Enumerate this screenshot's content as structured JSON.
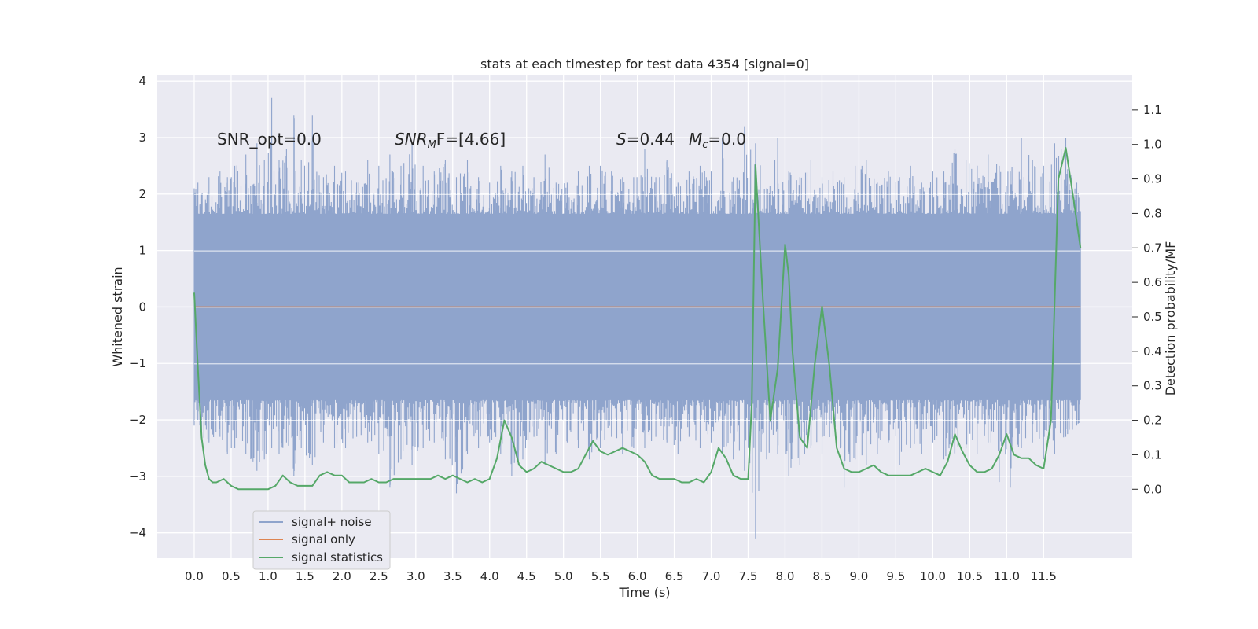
{
  "chart_data": {
    "type": "line",
    "title": "stats at each timestep for test data 4354 [signal=0]",
    "xlabel": "Time (s)",
    "ylabel": "Whitened strain",
    "ylabel_right": "Detection probability/MF",
    "xlim": [
      -0.5,
      12.7
    ],
    "ylim": [
      -4.45,
      4.1
    ],
    "ylim_right": [
      -0.2,
      1.2
    ],
    "x_ticks": [
      0.0,
      0.5,
      1.0,
      1.5,
      2.0,
      2.5,
      3.0,
      3.5,
      4.0,
      4.5,
      5.0,
      5.5,
      6.0,
      6.5,
      7.0,
      7.5,
      8.0,
      8.5,
      9.0,
      9.5,
      10.0,
      10.5,
      11.0,
      11.5
    ],
    "x_tick_labels": [
      "0.0",
      "0.5",
      "1.0",
      "1.5",
      "2.0",
      "2.5",
      "3.0",
      "3.5",
      "4.0",
      "4.5",
      "5.0",
      "5.5",
      "6.0",
      "6.5",
      "7.0",
      "7.5",
      "8.0",
      "8.5",
      "9.0",
      "9.5",
      "10.0",
      "10.5",
      "11.0",
      "11.5"
    ],
    "y_ticks": [
      -4,
      -3,
      -2,
      -1,
      0,
      1,
      2,
      3,
      4
    ],
    "y_tick_labels": [
      "−4",
      "−3",
      "−2",
      "−1",
      "0",
      "1",
      "2",
      "3",
      "4"
    ],
    "y_ticks_right": [
      0.0,
      0.1,
      0.2,
      0.3,
      0.4,
      0.5,
      0.6,
      0.7,
      0.8,
      0.9,
      1.0,
      1.1
    ],
    "y_tick_labels_right": [
      "0.0",
      "0.1",
      "0.2",
      "0.3",
      "0.4",
      "0.5",
      "0.6",
      "0.7",
      "0.8",
      "0.9",
      "1.0",
      "1.1"
    ],
    "grid": true,
    "legend_position": "lower-left",
    "annotations": {
      "snr_opt": "SNR_opt=0.0",
      "snr_mf_main": "SNR",
      "snr_mf_sub": "M",
      "snr_mf_rest": "F=[4.66]",
      "s_var": "S",
      "s_value": "=0.44",
      "mc_var": "M",
      "mc_sub": "c",
      "mc_value": "=0.0"
    },
    "series": [
      {
        "name": "signal+ noise",
        "color": "#8fa4cc",
        "description": "dense whitened noise band, t from 0.0 to 12.0 s",
        "band_low": -1.5,
        "band_high": 1.5,
        "extremes_x": [
          0.0,
          0.05,
          0.1,
          0.2,
          0.35,
          0.45,
          0.55,
          0.7,
          0.85,
          0.95,
          1.05,
          1.15,
          1.25,
          1.35,
          1.45,
          1.6,
          1.75,
          1.9,
          2.05,
          2.2,
          2.35,
          2.5,
          2.65,
          2.8,
          2.95,
          3.1,
          3.25,
          3.4,
          3.55,
          3.7,
          3.85,
          4.0,
          4.15,
          4.3,
          4.45,
          4.6,
          4.75,
          4.9,
          5.05,
          5.2,
          5.35,
          5.5,
          5.65,
          5.8,
          5.95,
          6.1,
          6.25,
          6.4,
          6.55,
          6.7,
          6.85,
          7.0,
          7.15,
          7.3,
          7.45,
          7.6,
          7.75,
          7.9,
          8.05,
          8.2,
          8.35,
          8.5,
          8.65,
          8.8,
          8.95,
          9.1,
          9.25,
          9.4,
          9.55,
          9.7,
          9.85,
          10.0,
          10.15,
          10.3,
          10.45,
          10.6,
          10.75,
          10.9,
          11.05,
          11.2,
          11.35,
          11.5,
          11.65,
          11.8,
          11.95
        ],
        "extremes_max": [
          2.1,
          2.2,
          2.0,
          2.3,
          2.4,
          2.3,
          2.5,
          2.7,
          2.9,
          2.6,
          3.7,
          2.6,
          2.8,
          3.4,
          2.6,
          3.4,
          2.3,
          2.5,
          2.4,
          2.2,
          2.6,
          2.5,
          2.7,
          2.5,
          2.9,
          2.5,
          2.4,
          2.6,
          2.3,
          2.6,
          2.3,
          2.2,
          2.5,
          2.4,
          2.5,
          2.3,
          2.7,
          2.2,
          2.2,
          2.4,
          2.5,
          2.5,
          2.4,
          2.3,
          2.3,
          2.8,
          2.3,
          2.6,
          2.2,
          2.4,
          2.5,
          2.4,
          3.0,
          2.3,
          3.2,
          2.9,
          2.1,
          3.0,
          2.4,
          2.3,
          2.6,
          2.3,
          2.4,
          2.3,
          2.5,
          2.6,
          2.2,
          2.4,
          2.3,
          2.5,
          2.2,
          2.4,
          2.4,
          2.8,
          2.6,
          2.5,
          2.7,
          2.5,
          2.4,
          3.0,
          2.6,
          2.5,
          2.9,
          3.0,
          2.2
        ],
        "extremes_min": [
          -2.1,
          -2.0,
          -2.3,
          -2.4,
          -2.3,
          -2.6,
          -2.5,
          -2.6,
          -2.9,
          -2.7,
          -2.5,
          -2.6,
          -2.4,
          -3.0,
          -2.5,
          -2.8,
          -2.4,
          -2.5,
          -2.5,
          -2.3,
          -2.4,
          -2.6,
          -3.2,
          -2.7,
          -2.8,
          -2.5,
          -2.4,
          -2.7,
          -3.3,
          -2.6,
          -2.5,
          -2.4,
          -2.6,
          -3.0,
          -2.7,
          -2.3,
          -2.8,
          -2.6,
          -2.4,
          -2.5,
          -2.7,
          -2.5,
          -2.3,
          -2.6,
          -2.5,
          -2.5,
          -2.3,
          -2.4,
          -2.6,
          -2.3,
          -2.5,
          -2.4,
          -2.6,
          -2.7,
          -2.9,
          -4.1,
          -2.7,
          -2.6,
          -3.0,
          -2.8,
          -2.5,
          -2.6,
          -2.3,
          -3.2,
          -2.7,
          -2.8,
          -2.6,
          -2.4,
          -2.8,
          -2.5,
          -2.6,
          -2.4,
          -2.7,
          -2.6,
          -2.5,
          -2.6,
          -2.4,
          -3.1,
          -3.2,
          -2.5,
          -2.4,
          -2.7,
          -2.6,
          -2.3,
          -2.1
        ]
      },
      {
        "name": "signal only",
        "color": "#dd8452",
        "x": [
          0.0,
          12.0
        ],
        "values": [
          0.0,
          0.0
        ]
      },
      {
        "name": "signal statistics",
        "color": "#55a868",
        "axis": "right",
        "x": [
          0.0,
          0.05,
          0.1,
          0.15,
          0.2,
          0.25,
          0.3,
          0.4,
          0.5,
          0.6,
          0.7,
          0.8,
          0.9,
          1.0,
          1.1,
          1.2,
          1.3,
          1.4,
          1.5,
          1.6,
          1.7,
          1.8,
          1.9,
          2.0,
          2.1,
          2.2,
          2.3,
          2.4,
          2.5,
          2.6,
          2.7,
          2.8,
          2.9,
          3.0,
          3.1,
          3.2,
          3.3,
          3.4,
          3.5,
          3.6,
          3.7,
          3.8,
          3.9,
          4.0,
          4.1,
          4.2,
          4.3,
          4.4,
          4.5,
          4.6,
          4.7,
          4.8,
          4.9,
          5.0,
          5.1,
          5.2,
          5.3,
          5.4,
          5.5,
          5.6,
          5.7,
          5.8,
          5.9,
          6.0,
          6.1,
          6.2,
          6.3,
          6.4,
          6.5,
          6.6,
          6.7,
          6.8,
          6.9,
          7.0,
          7.1,
          7.2,
          7.3,
          7.4,
          7.5,
          7.55,
          7.6,
          7.7,
          7.8,
          7.9,
          8.0,
          8.05,
          8.1,
          8.2,
          8.3,
          8.4,
          8.5,
          8.6,
          8.7,
          8.8,
          8.9,
          9.0,
          9.1,
          9.2,
          9.3,
          9.4,
          9.5,
          9.6,
          9.7,
          9.8,
          9.9,
          10.0,
          10.1,
          10.2,
          10.3,
          10.4,
          10.5,
          10.6,
          10.7,
          10.8,
          10.9,
          11.0,
          11.1,
          11.2,
          11.3,
          11.4,
          11.5,
          11.6,
          11.7,
          11.8,
          11.9,
          12.0
        ],
        "values": [
          0.57,
          0.35,
          0.15,
          0.07,
          0.03,
          0.02,
          0.02,
          0.03,
          0.01,
          0.0,
          0.0,
          0.0,
          0.0,
          0.0,
          0.01,
          0.04,
          0.02,
          0.01,
          0.01,
          0.01,
          0.04,
          0.05,
          0.04,
          0.04,
          0.02,
          0.02,
          0.02,
          0.03,
          0.02,
          0.02,
          0.03,
          0.03,
          0.03,
          0.03,
          0.03,
          0.03,
          0.04,
          0.03,
          0.04,
          0.03,
          0.02,
          0.03,
          0.02,
          0.03,
          0.09,
          0.2,
          0.15,
          0.07,
          0.05,
          0.06,
          0.08,
          0.07,
          0.06,
          0.05,
          0.05,
          0.06,
          0.1,
          0.14,
          0.11,
          0.1,
          0.11,
          0.12,
          0.11,
          0.1,
          0.08,
          0.04,
          0.03,
          0.03,
          0.03,
          0.02,
          0.02,
          0.03,
          0.02,
          0.05,
          0.12,
          0.09,
          0.04,
          0.03,
          0.03,
          0.25,
          0.94,
          0.55,
          0.2,
          0.35,
          0.71,
          0.62,
          0.4,
          0.15,
          0.12,
          0.36,
          0.53,
          0.36,
          0.12,
          0.06,
          0.05,
          0.05,
          0.06,
          0.07,
          0.05,
          0.04,
          0.04,
          0.04,
          0.04,
          0.05,
          0.06,
          0.05,
          0.04,
          0.08,
          0.16,
          0.11,
          0.07,
          0.05,
          0.05,
          0.06,
          0.1,
          0.16,
          0.1,
          0.09,
          0.09,
          0.07,
          0.06,
          0.2,
          0.9,
          0.99,
          0.85,
          0.7
        ]
      }
    ]
  }
}
